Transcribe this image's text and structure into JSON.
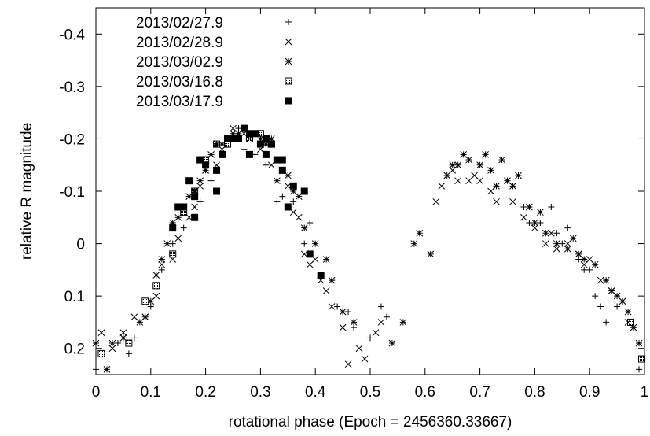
{
  "chart_data": {
    "type": "scatter",
    "title": "",
    "xlabel": "rotational phase (Epoch = 2456360.33667)",
    "ylabel": "relative R magnitude",
    "xlim": [
      0,
      1
    ],
    "ylim": [
      0.25,
      -0.45
    ],
    "y_inverted": true,
    "grid": false,
    "legend_position": "top-left",
    "x_ticks": [
      "0",
      "0.1",
      "0.2",
      "0.3",
      "0.4",
      "0.5",
      "0.6",
      "0.7",
      "0.8",
      "0.9",
      "1"
    ],
    "y_ticks": [
      "-0.4",
      "-0.3",
      "-0.2",
      "-0.1",
      "0",
      "0.1",
      "0.2"
    ],
    "series": [
      {
        "name": "2013/02/27.9",
        "marker": "plus",
        "points": [
          [
            0.0,
            0.24
          ],
          [
            0.04,
            0.19
          ],
          [
            0.06,
            0.21
          ],
          [
            0.07,
            0.18
          ],
          [
            0.1,
            0.12
          ],
          [
            0.12,
            0.05
          ],
          [
            0.14,
            0.0
          ],
          [
            0.16,
            -0.03
          ],
          [
            0.19,
            -0.08
          ],
          [
            0.21,
            -0.12
          ],
          [
            0.23,
            -0.17
          ],
          [
            0.25,
            -0.2
          ],
          [
            0.26,
            -0.22
          ],
          [
            0.27,
            -0.18
          ],
          [
            0.29,
            -0.17
          ],
          [
            0.31,
            -0.15
          ],
          [
            0.33,
            -0.08
          ],
          [
            0.34,
            -0.09
          ],
          [
            0.36,
            -0.08
          ],
          [
            0.38,
            0.0
          ],
          [
            0.39,
            -0.04
          ],
          [
            0.41,
            0.06
          ],
          [
            0.43,
            0.07
          ],
          [
            0.44,
            0.12
          ],
          [
            0.46,
            0.13
          ],
          [
            0.47,
            0.16
          ],
          [
            0.5,
            0.18
          ],
          [
            0.52,
            0.12
          ],
          [
            0.53,
            0.14
          ],
          [
            0.78,
            -0.07
          ],
          [
            0.79,
            -0.04
          ],
          [
            0.81,
            -0.04
          ],
          [
            0.83,
            -0.07
          ],
          [
            0.84,
            -0.02
          ],
          [
            0.85,
            0.0
          ],
          [
            0.86,
            -0.03
          ],
          [
            0.88,
            0.03
          ],
          [
            0.89,
            0.05
          ],
          [
            0.9,
            0.05
          ],
          [
            0.91,
            0.1
          ],
          [
            0.92,
            0.12
          ],
          [
            0.93,
            0.15
          ],
          [
            0.95,
            0.12
          ],
          [
            0.98,
            0.16
          ],
          [
            0.99,
            0.24
          ]
        ]
      },
      {
        "name": "2013/02/28.9",
        "marker": "cross",
        "points": [
          [
            0.01,
            0.17
          ],
          [
            0.03,
            0.2
          ],
          [
            0.05,
            0.17
          ],
          [
            0.07,
            0.14
          ],
          [
            0.09,
            0.14
          ],
          [
            0.11,
            0.1
          ],
          [
            0.12,
            0.04
          ],
          [
            0.14,
            0.03
          ],
          [
            0.15,
            -0.01
          ],
          [
            0.17,
            -0.05
          ],
          [
            0.18,
            -0.07
          ],
          [
            0.19,
            -0.11
          ],
          [
            0.2,
            -0.14
          ],
          [
            0.22,
            -0.15
          ],
          [
            0.23,
            -0.18
          ],
          [
            0.24,
            -0.2
          ],
          [
            0.25,
            -0.22
          ],
          [
            0.27,
            -0.21
          ],
          [
            0.28,
            -0.2
          ],
          [
            0.29,
            -0.21
          ],
          [
            0.3,
            -0.18
          ],
          [
            0.31,
            -0.19
          ],
          [
            0.32,
            -0.15
          ],
          [
            0.33,
            -0.16
          ],
          [
            0.35,
            -0.11
          ],
          [
            0.36,
            -0.06
          ],
          [
            0.37,
            -0.05
          ],
          [
            0.38,
            0.02
          ],
          [
            0.39,
            0.04
          ],
          [
            0.4,
            0.03
          ],
          [
            0.41,
            0.07
          ],
          [
            0.42,
            0.09
          ],
          [
            0.43,
            0.12
          ],
          [
            0.45,
            0.16
          ],
          [
            0.46,
            0.23
          ],
          [
            0.48,
            0.2
          ],
          [
            0.49,
            0.22
          ],
          [
            0.51,
            0.17
          ],
          [
            0.52,
            0.15
          ],
          [
            0.62,
            -0.08
          ],
          [
            0.63,
            -0.11
          ],
          [
            0.65,
            -0.14
          ],
          [
            0.66,
            -0.12
          ],
          [
            0.68,
            -0.12
          ],
          [
            0.69,
            -0.13
          ],
          [
            0.7,
            -0.12
          ],
          [
            0.72,
            -0.1
          ],
          [
            0.73,
            -0.08
          ],
          [
            0.75,
            -0.12
          ],
          [
            0.76,
            -0.08
          ],
          [
            0.78,
            -0.05
          ],
          [
            0.8,
            -0.03
          ],
          [
            0.82,
            0.0
          ],
          [
            0.83,
            -0.02
          ],
          [
            0.84,
            0.01
          ],
          [
            0.86,
            0.0
          ],
          [
            0.88,
            0.02
          ],
          [
            0.89,
            0.04
          ],
          [
            0.9,
            0.03
          ],
          [
            0.92,
            0.07
          ],
          [
            0.94,
            0.09
          ],
          [
            0.96,
            0.11
          ],
          [
            0.97,
            0.15
          ]
        ]
      },
      {
        "name": "2013/03/02.9",
        "marker": "star",
        "points": [
          [
            0.0,
            0.19
          ],
          [
            0.02,
            0.24
          ],
          [
            0.03,
            0.19
          ],
          [
            0.05,
            0.18
          ],
          [
            0.08,
            0.15
          ],
          [
            0.09,
            0.14
          ],
          [
            0.1,
            0.11
          ],
          [
            0.11,
            0.06
          ],
          [
            0.12,
            0.03
          ],
          [
            0.13,
            0.0
          ],
          [
            0.14,
            -0.04
          ],
          [
            0.15,
            -0.05
          ],
          [
            0.16,
            -0.07
          ],
          [
            0.17,
            -0.09
          ],
          [
            0.18,
            -0.1
          ],
          [
            0.19,
            -0.12
          ],
          [
            0.2,
            -0.14
          ],
          [
            0.21,
            -0.17
          ],
          [
            0.22,
            -0.19
          ],
          [
            0.23,
            -0.19
          ],
          [
            0.24,
            -0.2
          ],
          [
            0.25,
            -0.21
          ],
          [
            0.26,
            -0.21
          ],
          [
            0.28,
            -0.21
          ],
          [
            0.29,
            -0.21
          ],
          [
            0.3,
            -0.2
          ],
          [
            0.31,
            -0.19
          ],
          [
            0.32,
            -0.2
          ],
          [
            0.33,
            -0.12
          ],
          [
            0.34,
            -0.14
          ],
          [
            0.35,
            -0.13
          ],
          [
            0.36,
            -0.1
          ],
          [
            0.37,
            -0.09
          ],
          [
            0.38,
            -0.03
          ],
          [
            0.4,
            0.0
          ],
          [
            0.42,
            0.03
          ],
          [
            0.43,
            0.07
          ],
          [
            0.45,
            0.13
          ],
          [
            0.47,
            0.15
          ],
          [
            0.54,
            0.19
          ],
          [
            0.56,
            0.15
          ],
          [
            0.58,
            0.0
          ],
          [
            0.59,
            -0.02
          ],
          [
            0.61,
            0.02
          ],
          [
            0.64,
            -0.13
          ],
          [
            0.65,
            -0.15
          ],
          [
            0.66,
            -0.15
          ],
          [
            0.67,
            -0.17
          ],
          [
            0.68,
            -0.16
          ],
          [
            0.7,
            -0.15
          ],
          [
            0.71,
            -0.17
          ],
          [
            0.72,
            -0.14
          ],
          [
            0.73,
            -0.11
          ],
          [
            0.74,
            -0.16
          ],
          [
            0.75,
            -0.12
          ],
          [
            0.76,
            -0.11
          ],
          [
            0.77,
            -0.13
          ],
          [
            0.79,
            -0.07
          ],
          [
            0.8,
            -0.04
          ],
          [
            0.81,
            -0.06
          ],
          [
            0.82,
            -0.02
          ],
          [
            0.84,
            0.0
          ],
          [
            0.86,
            0.01
          ],
          [
            0.87,
            -0.01
          ],
          [
            0.88,
            0.02
          ],
          [
            0.89,
            0.03
          ],
          [
            0.91,
            0.04
          ],
          [
            0.93,
            0.07
          ],
          [
            0.94,
            0.09
          ],
          [
            0.95,
            0.1
          ],
          [
            0.96,
            0.11
          ],
          [
            0.97,
            0.13
          ],
          [
            0.98,
            0.16
          ],
          [
            0.99,
            0.19
          ]
        ]
      },
      {
        "name": "2013/03/16.8",
        "marker": "dotted-square",
        "points": [
          [
            0.01,
            0.21
          ],
          [
            0.06,
            0.19
          ],
          [
            0.09,
            0.11
          ],
          [
            0.11,
            0.08
          ],
          [
            0.14,
            0.02
          ],
          [
            0.16,
            -0.06
          ],
          [
            0.18,
            -0.1
          ],
          [
            0.2,
            -0.16
          ],
          [
            0.22,
            -0.19
          ],
          [
            0.24,
            -0.19
          ],
          [
            0.26,
            -0.2
          ],
          [
            0.28,
            -0.2
          ],
          [
            0.3,
            -0.21
          ],
          [
            0.32,
            -0.19
          ],
          [
            0.975,
            0.15
          ],
          [
            0.995,
            0.22
          ]
        ]
      },
      {
        "name": "2013/03/17.9",
        "marker": "filled-square",
        "points": [
          [
            0.14,
            -0.03
          ],
          [
            0.15,
            -0.07
          ],
          [
            0.16,
            -0.07
          ],
          [
            0.17,
            -0.12
          ],
          [
            0.18,
            -0.09
          ],
          [
            0.19,
            -0.16
          ],
          [
            0.2,
            -0.15
          ],
          [
            0.22,
            -0.14
          ],
          [
            0.23,
            -0.17
          ],
          [
            0.24,
            -0.2
          ],
          [
            0.25,
            -0.2
          ],
          [
            0.26,
            -0.2
          ],
          [
            0.27,
            -0.22
          ],
          [
            0.28,
            -0.21
          ],
          [
            0.28,
            -0.17
          ],
          [
            0.29,
            -0.21
          ],
          [
            0.3,
            -0.19
          ],
          [
            0.31,
            -0.2
          ],
          [
            0.31,
            -0.17
          ],
          [
            0.32,
            -0.19
          ],
          [
            0.33,
            -0.16
          ],
          [
            0.34,
            -0.14
          ],
          [
            0.34,
            -0.16
          ],
          [
            0.35,
            -0.07
          ],
          [
            0.36,
            -0.11
          ],
          [
            0.38,
            -0.1
          ],
          [
            0.39,
            0.02
          ],
          [
            0.41,
            0.06
          ],
          [
            0.22,
            -0.1
          ],
          [
            0.18,
            -0.05
          ]
        ]
      }
    ]
  }
}
